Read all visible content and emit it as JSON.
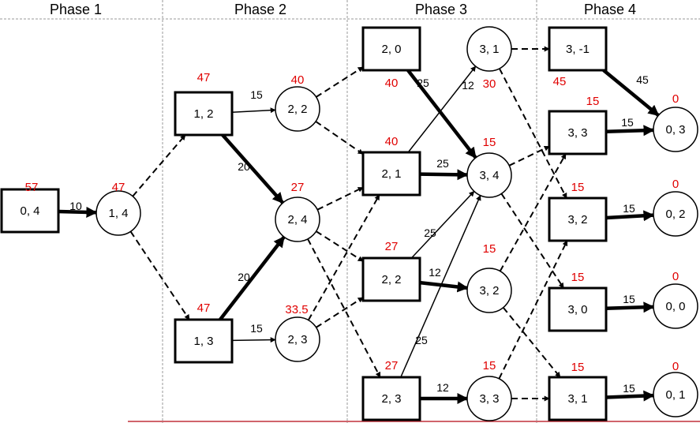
{
  "phases": [
    "Phase 1",
    "Phase 2",
    "Phase 3",
    "Phase 4"
  ],
  "nodes": [
    {
      "id": "p1_04",
      "shape": "rect",
      "label": "0, 4",
      "value": "57"
    },
    {
      "id": "p1_14",
      "shape": "circle",
      "label": "1, 4",
      "value": "47"
    },
    {
      "id": "p2_12",
      "shape": "rect",
      "label": "1, 2",
      "value": "47"
    },
    {
      "id": "p2_13",
      "shape": "rect",
      "label": "1, 3",
      "value": "47"
    },
    {
      "id": "p2_22",
      "shape": "circle",
      "label": "2, 2",
      "value": "40"
    },
    {
      "id": "p2_24",
      "shape": "circle",
      "label": "2, 4",
      "value": "27"
    },
    {
      "id": "p2_23",
      "shape": "circle",
      "label": "2, 3",
      "value": "33.5"
    },
    {
      "id": "p3_20",
      "shape": "rect",
      "label": "2, 0",
      "value": "40"
    },
    {
      "id": "p3_21",
      "shape": "rect",
      "label": "2, 1",
      "value": "40"
    },
    {
      "id": "p3_22",
      "shape": "rect",
      "label": "2, 2",
      "value": "27"
    },
    {
      "id": "p3_23",
      "shape": "rect",
      "label": "2, 3",
      "value": "27"
    },
    {
      "id": "p3_31",
      "shape": "circle",
      "label": "3, 1",
      "value": "30"
    },
    {
      "id": "p3_34",
      "shape": "circle",
      "label": "3, 4",
      "value": "15"
    },
    {
      "id": "p3_32",
      "shape": "circle",
      "label": "3, 2",
      "value": "15"
    },
    {
      "id": "p3_33",
      "shape": "circle",
      "label": "3, 3",
      "value": "15"
    },
    {
      "id": "p4_3m1",
      "shape": "rect",
      "label": "3, -1",
      "value": "45"
    },
    {
      "id": "p4_33",
      "shape": "rect",
      "label": "3, 3",
      "value": "15"
    },
    {
      "id": "p4_32",
      "shape": "rect",
      "label": "3, 2",
      "value": "15"
    },
    {
      "id": "p4_30",
      "shape": "rect",
      "label": "3, 0",
      "value": "15"
    },
    {
      "id": "p4_31",
      "shape": "rect",
      "label": "3, 1",
      "value": "15"
    },
    {
      "id": "p4_03",
      "shape": "circle",
      "label": "0, 3",
      "value": "0"
    },
    {
      "id": "p4_02",
      "shape": "circle",
      "label": "0, 2",
      "value": "0"
    },
    {
      "id": "p4_00",
      "shape": "circle",
      "label": "0, 0",
      "value": "0"
    },
    {
      "id": "p4_01",
      "shape": "circle",
      "label": "0, 1",
      "value": "0"
    }
  ],
  "edges": [
    {
      "from": "p1_04",
      "to": "p1_14",
      "style": "bold",
      "weight": "10"
    },
    {
      "from": "p1_14",
      "to": "p2_12",
      "style": "dashed",
      "weight": ""
    },
    {
      "from": "p1_14",
      "to": "p2_13",
      "style": "dashed",
      "weight": ""
    },
    {
      "from": "p2_12",
      "to": "p2_22",
      "style": "solid",
      "weight": "15"
    },
    {
      "from": "p2_12",
      "to": "p2_24",
      "style": "bold",
      "weight": "20"
    },
    {
      "from": "p2_13",
      "to": "p2_24",
      "style": "bold",
      "weight": "20"
    },
    {
      "from": "p2_13",
      "to": "p2_23",
      "style": "solid",
      "weight": "15"
    },
    {
      "from": "p2_22",
      "to": "p3_20",
      "style": "dashed",
      "weight": ""
    },
    {
      "from": "p2_22",
      "to": "p3_21",
      "style": "dashed",
      "weight": ""
    },
    {
      "from": "p2_24",
      "to": "p3_21",
      "style": "dashed",
      "weight": ""
    },
    {
      "from": "p2_24",
      "to": "p3_22",
      "style": "dashed",
      "weight": ""
    },
    {
      "from": "p2_24",
      "to": "p3_23",
      "style": "dashed",
      "weight": ""
    },
    {
      "from": "p2_23",
      "to": "p3_21",
      "style": "dashed",
      "weight": ""
    },
    {
      "from": "p2_23",
      "to": "p3_22",
      "style": "dashed",
      "weight": ""
    },
    {
      "from": "p3_20",
      "to": "p3_34",
      "style": "bold",
      "weight": "25"
    },
    {
      "from": "p3_21",
      "to": "p3_31",
      "style": "solid",
      "weight": "12"
    },
    {
      "from": "p3_21",
      "to": "p3_34",
      "style": "bold",
      "weight": "25"
    },
    {
      "from": "p3_22",
      "to": "p3_34",
      "style": "solid",
      "weight": "25"
    },
    {
      "from": "p3_22",
      "to": "p3_32",
      "style": "bold",
      "weight": "12"
    },
    {
      "from": "p3_23",
      "to": "p3_34",
      "style": "solid",
      "weight": "25"
    },
    {
      "from": "p3_23",
      "to": "p3_33",
      "style": "bold",
      "weight": "12"
    },
    {
      "from": "p3_31",
      "to": "p4_3m1",
      "style": "dashed",
      "weight": ""
    },
    {
      "from": "p3_31",
      "to": "p4_32",
      "style": "dashed",
      "weight": ""
    },
    {
      "from": "p3_34",
      "to": "p4_33",
      "style": "dashed",
      "weight": ""
    },
    {
      "from": "p3_34",
      "to": "p4_30",
      "style": "dashed",
      "weight": ""
    },
    {
      "from": "p3_32",
      "to": "p4_33",
      "style": "dashed",
      "weight": ""
    },
    {
      "from": "p3_32",
      "to": "p4_31",
      "style": "dashed",
      "weight": ""
    },
    {
      "from": "p3_33",
      "to": "p4_32",
      "style": "dashed",
      "weight": ""
    },
    {
      "from": "p3_33",
      "to": "p4_31",
      "style": "dashed",
      "weight": ""
    },
    {
      "from": "p4_3m1",
      "to": "p4_03",
      "style": "bold",
      "weight": "45"
    },
    {
      "from": "p4_33",
      "to": "p4_03",
      "style": "bold",
      "weight": "15"
    },
    {
      "from": "p4_32",
      "to": "p4_02",
      "style": "bold",
      "weight": "15"
    },
    {
      "from": "p4_30",
      "to": "p4_00",
      "style": "bold",
      "weight": "15"
    },
    {
      "from": "p4_31",
      "to": "p4_01",
      "style": "bold",
      "weight": "15"
    }
  ]
}
